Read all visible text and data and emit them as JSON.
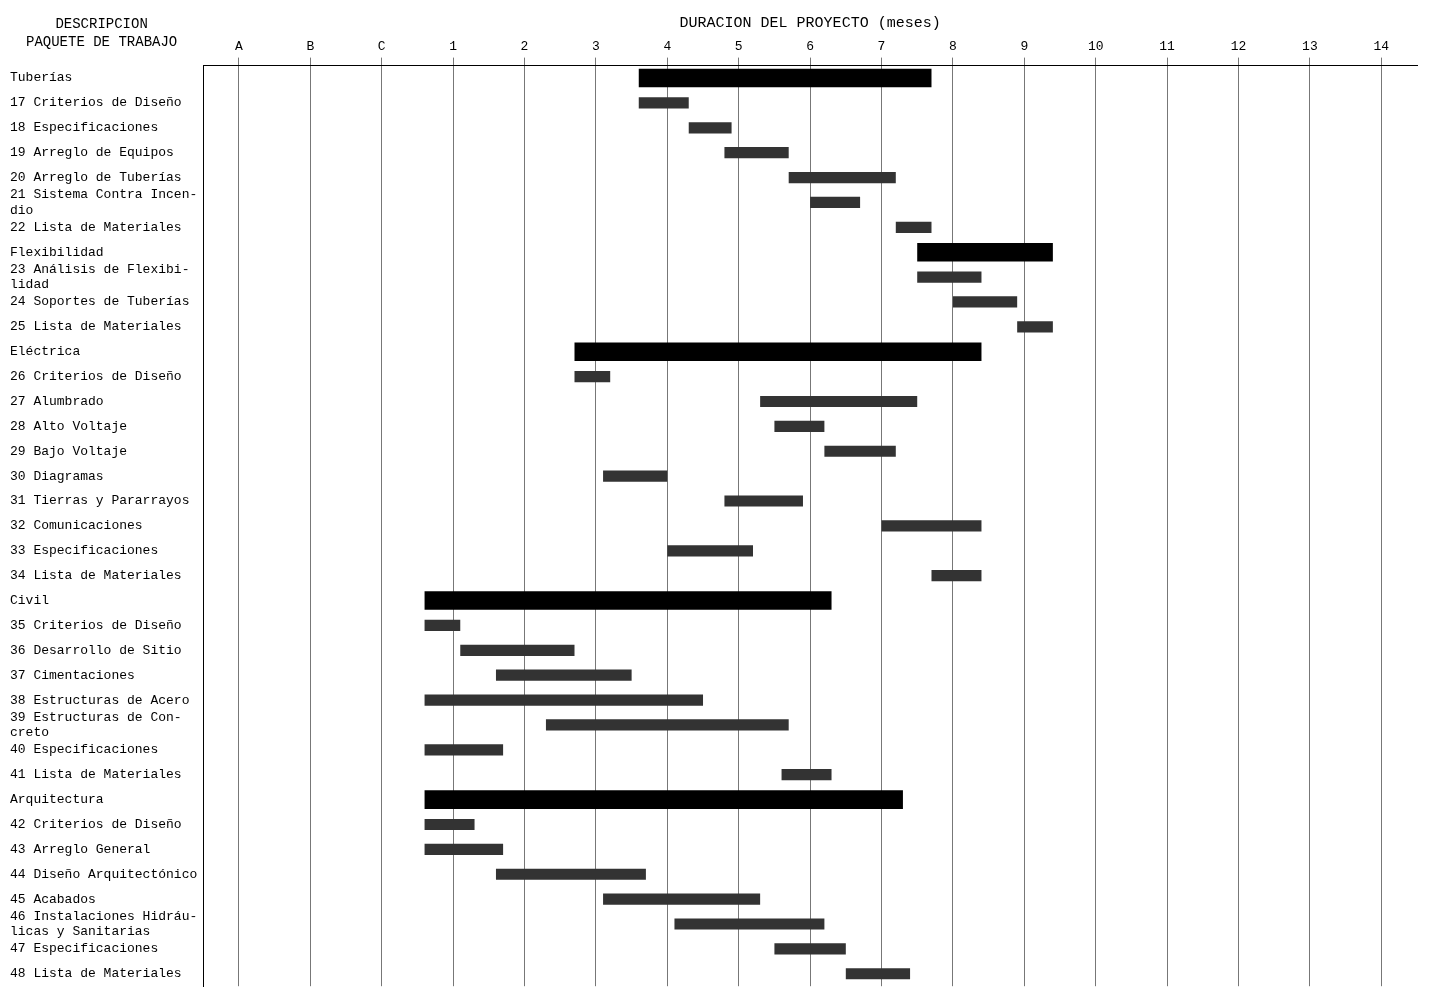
{
  "chart_data": {
    "type": "bar",
    "orientation": "horizontal",
    "xlabel": "DURACION DEL PROYECTO (meses)",
    "ylabel": "DESCRIPCION\nPAQUETE DE TRABAJO",
    "categories": [
      "Tuberías",
      "17 Criterios de Diseño",
      "18 Especificaciones",
      "19 Arreglo de Equipos",
      "20 Arreglo de Tuberías",
      "21 Sistema Contra Incen-\ndio",
      "22 Lista de Materiales",
      "Flexibilidad",
      "23 Análisis de Flexibi-\nlidad",
      "24 Soportes de Tuberías",
      "25 Lista de Materiales",
      "Eléctrica",
      "26 Criterios de Diseño",
      "27 Alumbrado",
      "28 Alto Voltaje",
      "29 Bajo Voltaje",
      "30 Diagramas",
      "31 Tierras y Pararrayos",
      "32 Comunicaciones",
      "33 Especificaciones",
      "34 Lista de Materiales",
      "Civil",
      "35 Criterios de Diseño",
      "36 Desarrollo de Sitio",
      "37 Cimentaciones",
      "38 Estructuras de Acero",
      "39 Estructuras de Con-\ncreto",
      "40 Especificaciones",
      "41 Lista de Materiales",
      "Arquitectura",
      "42 Criterios de Diseño",
      "43 Arreglo General",
      "44 Diseño Arquitectónico",
      "45 Acabados",
      "46 Instalaciones Hidráu-\nlicas y Sanitarias",
      "47 Especificaciones",
      "48 Lista de Materiales"
    ],
    "series": [
      {
        "color": "#000000",
        "base": [
          3.6,
          null,
          null,
          null,
          null,
          null,
          null,
          7.5,
          null,
          null,
          null,
          2.7,
          null,
          null,
          null,
          null,
          null,
          null,
          null,
          null,
          null,
          0.6,
          null,
          null,
          null,
          null,
          null,
          null,
          null,
          0.6,
          null,
          null,
          null,
          null,
          null,
          null,
          null
        ],
        "values": [
          4.1,
          null,
          null,
          null,
          null,
          null,
          null,
          1.9,
          null,
          null,
          null,
          5.7,
          null,
          null,
          null,
          null,
          null,
          null,
          null,
          null,
          null,
          5.7,
          null,
          null,
          null,
          null,
          null,
          null,
          null,
          6.7,
          null,
          null,
          null,
          null,
          null,
          null,
          null
        ]
      },
      {
        "color": "#333333",
        "base": [
          null,
          3.6,
          4.3,
          4.8,
          5.7,
          6.0,
          7.2,
          null,
          7.5,
          8.0,
          8.9,
          null,
          2.7,
          5.3,
          5.5,
          6.2,
          3.1,
          4.8,
          7.0,
          4.0,
          7.7,
          null,
          0.6,
          1.1,
          1.6,
          0.6,
          2.3,
          0.6,
          5.6,
          null,
          0.6,
          0.6,
          1.6,
          3.1,
          4.1,
          5.5,
          6.5
        ],
        "values": [
          null,
          0.7,
          0.6,
          0.9,
          1.5,
          0.7,
          0.5,
          null,
          0.9,
          0.9,
          0.5,
          null,
          0.5,
          2.2,
          0.7,
          1.0,
          0.9,
          1.1,
          1.4,
          1.2,
          0.7,
          null,
          0.5,
          1.6,
          1.9,
          3.9,
          3.4,
          1.1,
          0.7,
          null,
          0.7,
          1.1,
          2.1,
          2.2,
          2.1,
          1.0,
          0.9
        ]
      }
    ],
    "xlim": [
      -2.5,
      14.5
    ],
    "xticks": [
      {
        "value": -2,
        "label": "A"
      },
      {
        "value": -1,
        "label": "B"
      },
      {
        "value": 0,
        "label": "C"
      },
      1,
      2,
      3,
      4,
      5,
      6,
      7,
      8,
      9,
      10,
      11,
      12,
      13,
      14
    ],
    "grid": "x"
  }
}
